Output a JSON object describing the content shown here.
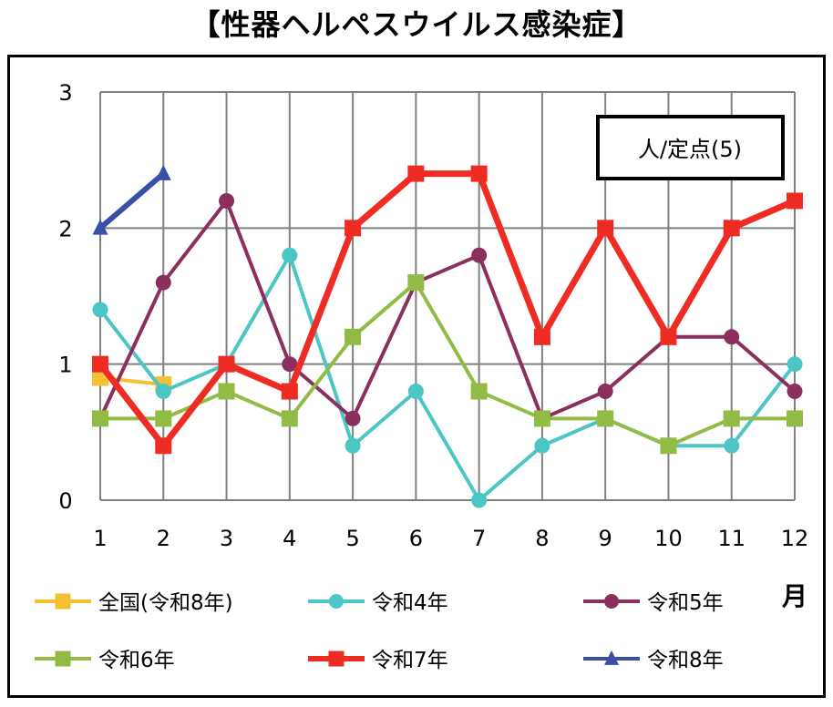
{
  "chart_data": {
    "type": "line",
    "title": "【性器ヘルペスウイルス感染症】",
    "unit_label": "人/定点(5)",
    "xlabel": "月",
    "ylabel": "",
    "categories": [
      "1",
      "2",
      "3",
      "4",
      "5",
      "6",
      "7",
      "8",
      "9",
      "10",
      "11",
      "12"
    ],
    "ylim": [
      0,
      3
    ],
    "yticks": [
      "0",
      "1",
      "2",
      "3"
    ],
    "grid": true,
    "legend_position": "bottom",
    "series": [
      {
        "name": "全国(令和8年)",
        "color": "#f6c032",
        "marker": "square",
        "values": [
          0.9,
          0.85,
          null,
          null,
          null,
          null,
          null,
          null,
          null,
          null,
          null,
          null
        ]
      },
      {
        "name": "令和4年",
        "color": "#4cc5c5",
        "marker": "circle",
        "values": [
          1.4,
          0.8,
          1.0,
          1.8,
          0.4,
          0.8,
          0.0,
          0.4,
          0.6,
          0.4,
          0.4,
          1.0
        ]
      },
      {
        "name": "令和5年",
        "color": "#8c2e5e",
        "marker": "circle",
        "values": [
          0.6,
          1.6,
          2.2,
          1.0,
          0.6,
          1.6,
          1.8,
          0.6,
          0.8,
          1.2,
          1.2,
          0.8
        ]
      },
      {
        "name": "令和6年",
        "color": "#92bb46",
        "marker": "square",
        "values": [
          0.6,
          0.6,
          0.8,
          0.6,
          1.2,
          1.6,
          0.8,
          0.6,
          0.6,
          0.4,
          0.6,
          0.6
        ]
      },
      {
        "name": "令和7年",
        "color": "#ee2c24",
        "marker": "square",
        "values": [
          1.0,
          0.4,
          1.0,
          0.8,
          2.0,
          2.4,
          2.4,
          1.2,
          2.0,
          1.2,
          2.0,
          2.2
        ]
      },
      {
        "name": "令和8年",
        "color": "#3a4fa6",
        "marker": "triangle",
        "values": [
          2.0,
          2.4,
          null,
          null,
          null,
          null,
          null,
          null,
          null,
          null,
          null,
          null
        ]
      }
    ]
  }
}
